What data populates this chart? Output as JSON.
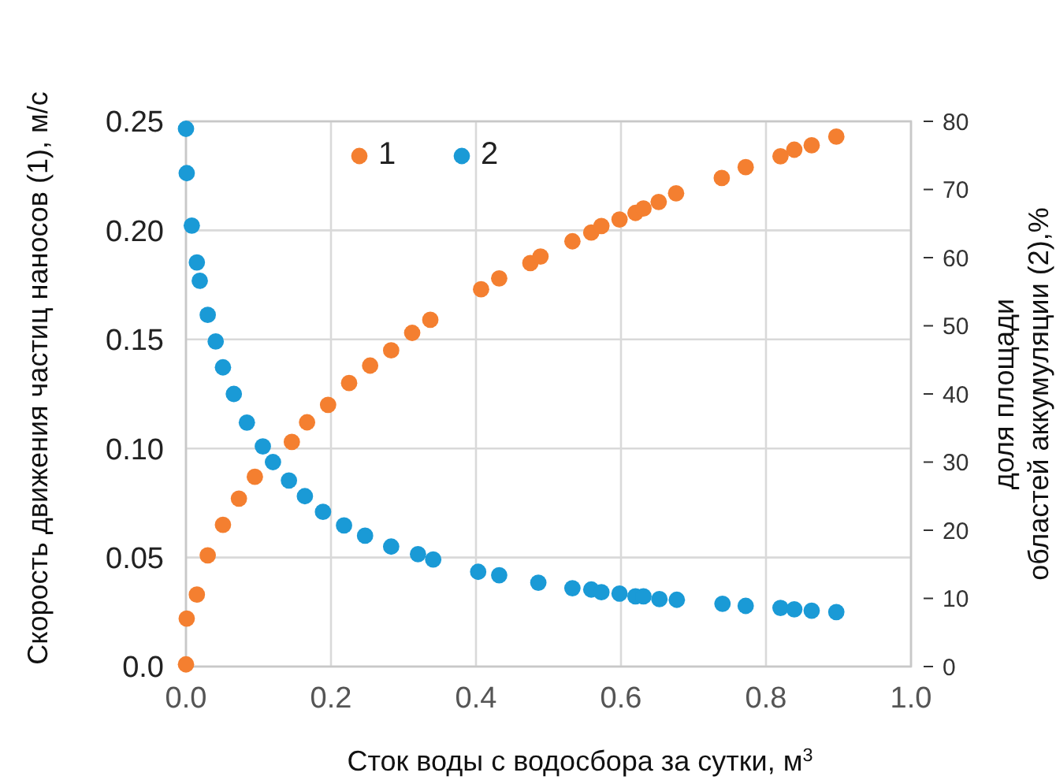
{
  "chart_data": {
    "type": "scatter",
    "xlabel": "Сток воды с водосбора за сутки, м$^{3}$",
    "ylabel": "Скорость движения частиц наносов (1), м/с",
    "y2label": "доля площади\nобластей аккумуляции (2),%",
    "xlim": [
      0,
      1
    ],
    "xticks": [
      {
        "value": 0,
        "label": "0.0"
      },
      {
        "value": 0.2,
        "label": "0.2"
      },
      {
        "value": 0.4,
        "label": "0.4"
      },
      {
        "value": 0.6,
        "label": "0.6"
      },
      {
        "value": 0.8,
        "label": "0.8"
      },
      {
        "value": 1,
        "label": "1.0"
      }
    ],
    "ylim": [
      0,
      0.25
    ],
    "yticks": [
      {
        "value": 0,
        "label": "0.0"
      },
      0.05,
      {
        "value": 0.1,
        "label": "0.10"
      },
      0.15,
      {
        "value": 0.2,
        "label": "0.20"
      },
      0.25
    ],
    "y2lim": [
      0,
      80
    ],
    "y2ticks": [
      0,
      10,
      20,
      30,
      40,
      50,
      60,
      70,
      80
    ],
    "grid": true,
    "legend": "top",
    "marker": "circle",
    "series": [
      {
        "name": "1",
        "color": "#f47f30",
        "x": [
          0,
          0.001,
          0.015,
          0.03,
          0.051,
          0.073,
          0.095,
          0.146,
          0.167,
          0.196,
          0.225,
          0.254,
          0.283,
          0.312,
          0.337,
          0.407,
          0.432,
          0.475,
          0.489,
          0.533,
          0.559,
          0.573,
          0.598,
          0.62,
          0.631,
          0.652,
          0.676,
          0.739,
          0.772,
          0.82,
          0.839,
          0.863,
          0.897
        ],
        "values": [
          0.001,
          0.022,
          0.033,
          0.051,
          0.065,
          0.077,
          0.087,
          0.103,
          0.112,
          0.12,
          0.13,
          0.138,
          0.145,
          0.153,
          0.159,
          0.173,
          0.178,
          0.185,
          0.188,
          0.195,
          0.199,
          0.202,
          0.205,
          0.208,
          0.21,
          0.213,
          0.217,
          0.224,
          0.229,
          0.234,
          0.237,
          0.239,
          0.243
        ]
      },
      {
        "name": "2",
        "color": "#1a9ad6",
        "axis": "y2",
        "x": [
          0,
          0.001,
          0.008,
          0.015,
          0.019,
          0.03,
          0.041,
          0.051,
          0.066,
          0.084,
          0.106,
          0.12,
          0.142,
          0.164,
          0.189,
          0.218,
          0.247,
          0.283,
          0.32,
          0.341,
          0.403,
          0.432,
          0.486,
          0.533,
          0.559,
          0.573,
          0.598,
          0.62,
          0.631,
          0.653,
          0.677,
          0.74,
          0.772,
          0.82,
          0.839,
          0.863,
          0.897
        ],
        "values": [
          78.9,
          72.4,
          64.7,
          59.3,
          56.6,
          51.6,
          47.7,
          43.9,
          40.0,
          35.8,
          32.3,
          30.0,
          27.3,
          25.0,
          22.7,
          20.7,
          19.2,
          17.6,
          16.5,
          15.7,
          13.9,
          13.4,
          12.3,
          11.5,
          11.3,
          10.9,
          10.7,
          10.3,
          10.3,
          9.9,
          9.8,
          9.2,
          8.9,
          8.6,
          8.4,
          8.2,
          8.0
        ]
      }
    ]
  }
}
